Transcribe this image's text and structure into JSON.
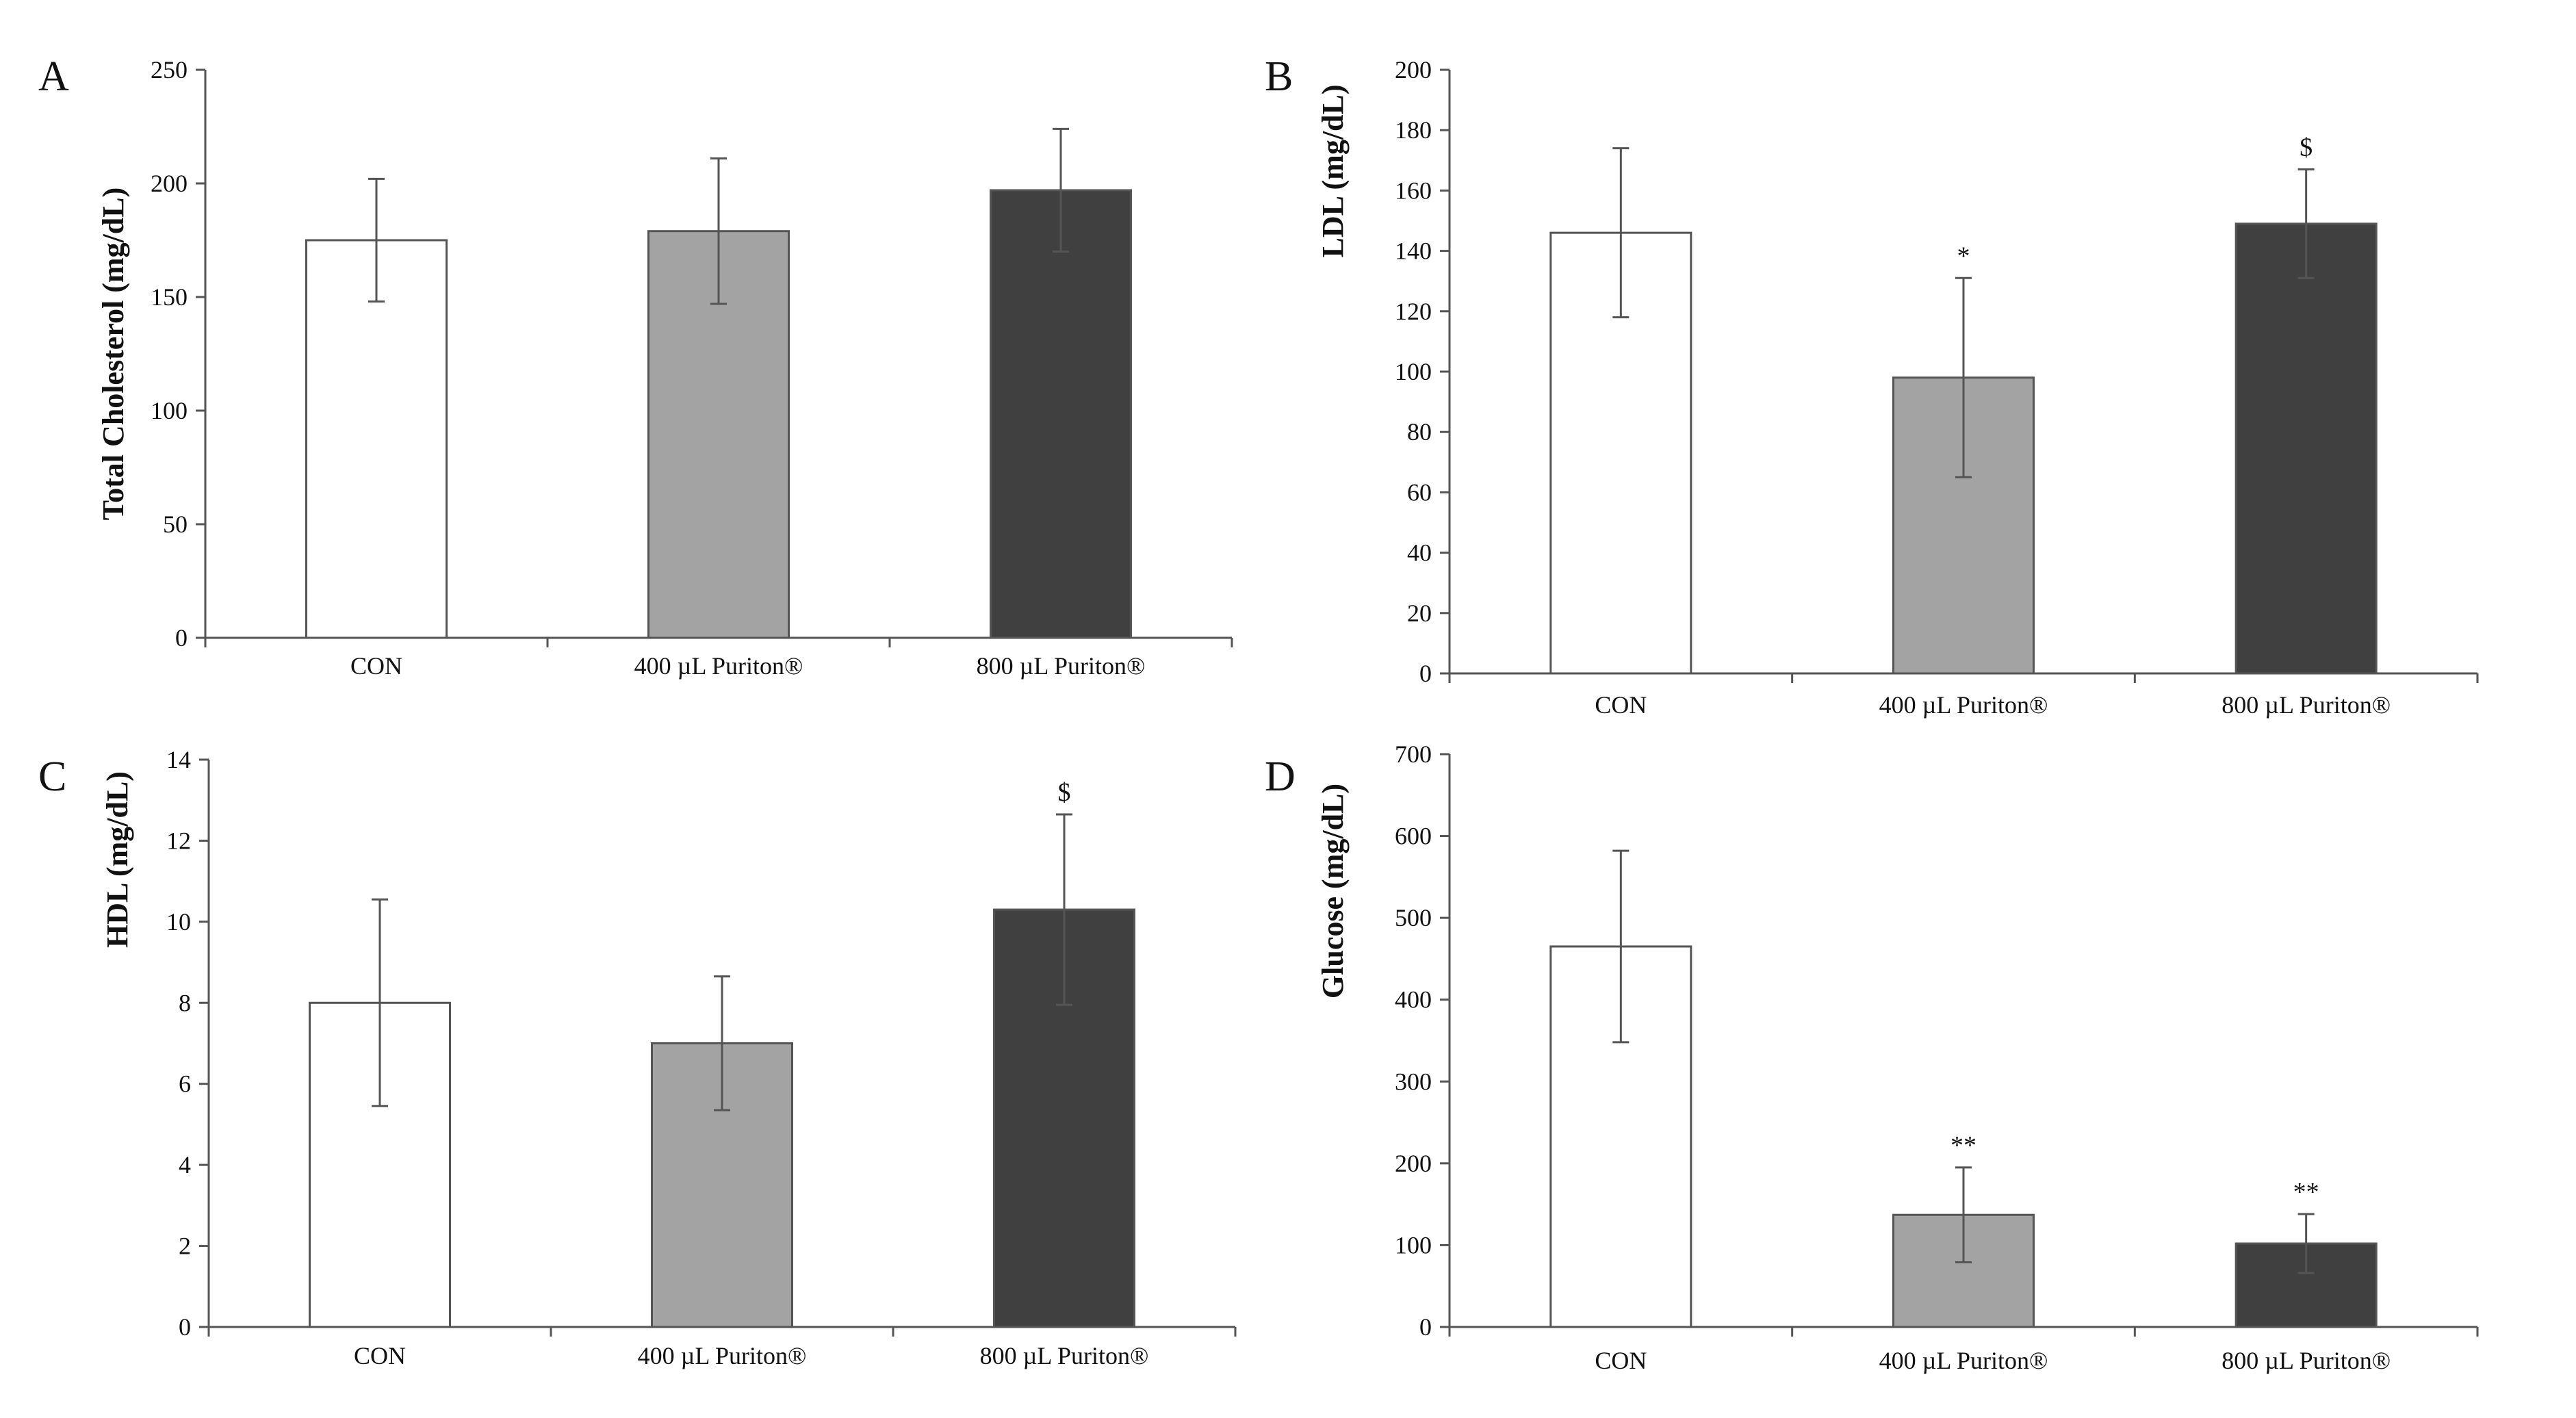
{
  "chart_data": [
    {
      "type": "bar",
      "panel": "A",
      "title": "",
      "xlabel": "",
      "ylabel": "Total Cholesterol (mg/dL)",
      "ylim": [
        0,
        250
      ],
      "yticks": [
        0,
        50,
        100,
        150,
        200,
        250
      ],
      "categories": [
        "CON",
        "400 µL Puriton®",
        "800 µL Puriton®"
      ],
      "values": [
        175,
        179,
        197
      ],
      "errors": [
        27,
        32,
        27
      ],
      "annotations": [
        "",
        "",
        ""
      ],
      "colors": [
        "#ffffff",
        "#a3a3a3",
        "#404040"
      ]
    },
    {
      "type": "bar",
      "panel": "B",
      "title": "",
      "xlabel": "",
      "ylabel": "LDL (mg/dL)",
      "ylim": [
        0,
        200
      ],
      "yticks": [
        0,
        20,
        40,
        60,
        80,
        100,
        120,
        140,
        160,
        180,
        200
      ],
      "categories": [
        "CON",
        "400 µL Puriton®",
        "800 µL Puriton®"
      ],
      "values": [
        146,
        98,
        149
      ],
      "errors": [
        28,
        33,
        18
      ],
      "annotations": [
        "",
        "*",
        "$"
      ],
      "colors": [
        "#ffffff",
        "#a3a3a3",
        "#404040"
      ]
    },
    {
      "type": "bar",
      "panel": "C",
      "title": "",
      "xlabel": "",
      "ylabel": "HDL (mg/dL)",
      "ylim": [
        0,
        14
      ],
      "yticks": [
        0,
        2,
        4,
        6,
        8,
        10,
        12,
        14
      ],
      "categories": [
        "CON",
        "400 µL Puriton®",
        "800 µL Puriton®"
      ],
      "values": [
        8.0,
        7.0,
        10.3
      ],
      "errors": [
        2.55,
        1.65,
        2.35
      ],
      "annotations": [
        "",
        "",
        "$"
      ],
      "colors": [
        "#ffffff",
        "#a3a3a3",
        "#404040"
      ]
    },
    {
      "type": "bar",
      "panel": "D",
      "title": "",
      "xlabel": "",
      "ylabel": "Glucose (mg/dL)",
      "ylim": [
        0,
        700
      ],
      "yticks": [
        0,
        100,
        200,
        300,
        400,
        500,
        600,
        700
      ],
      "categories": [
        "CON",
        "400 µL Puriton®",
        "800 µL Puriton®"
      ],
      "values": [
        465,
        137,
        102
      ],
      "errors": [
        117,
        58,
        36
      ],
      "annotations": [
        "",
        "**",
        "**"
      ],
      "colors": [
        "#ffffff",
        "#a3a3a3",
        "#404040"
      ]
    }
  ]
}
